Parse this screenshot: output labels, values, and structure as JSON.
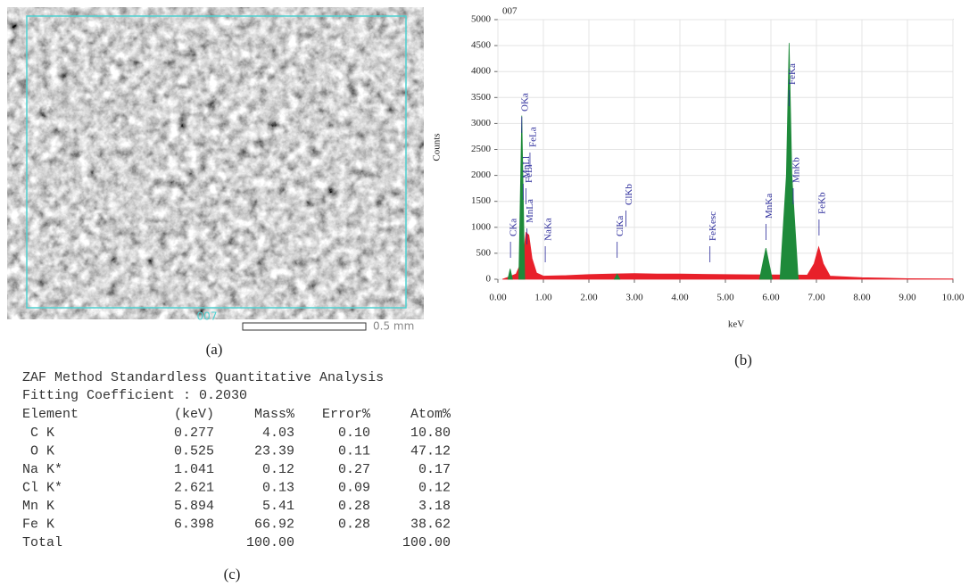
{
  "panels": {
    "a": "(a)",
    "b": "(b)",
    "c": "(c)"
  },
  "image": {
    "code": "007",
    "scale": "0.5 mm"
  },
  "chart_data": {
    "type": "area",
    "title": "007",
    "x_label": "keV",
    "y_label": "Counts",
    "xlim": [
      0,
      10
    ],
    "ylim": [
      0,
      5000
    ],
    "xticks": [
      {
        "value": 0,
        "label": "0.00"
      },
      {
        "value": 1,
        "label": "1.00"
      },
      {
        "value": 2,
        "label": "2.00"
      },
      {
        "value": 3,
        "label": "3.00"
      },
      {
        "value": 4,
        "label": "4.00"
      },
      {
        "value": 5,
        "label": "5.00"
      },
      {
        "value": 6,
        "label": "6.00"
      },
      {
        "value": 7,
        "label": "7.00"
      },
      {
        "value": 8,
        "label": "8.00"
      },
      {
        "value": 9,
        "label": "9.00"
      },
      {
        "value": 10,
        "label": "10.00"
      }
    ],
    "yticks": [
      0,
      500,
      1000,
      1500,
      2000,
      2500,
      3000,
      3500,
      4000,
      4500,
      5000
    ],
    "grid": true,
    "series": [
      {
        "color": "#e8202a",
        "x": [
          0.1,
          0.2,
          0.4,
          0.55,
          0.62,
          0.68,
          0.75,
          0.85,
          1.0,
          1.5,
          2.0,
          2.5,
          3.0,
          3.5,
          4.0,
          4.5,
          5.0,
          5.5,
          6.8,
          6.95,
          7.05,
          7.15,
          7.3,
          8.0,
          8.5,
          9.0,
          10.0
        ],
        "values": [
          0,
          30,
          100,
          400,
          900,
          850,
          400,
          120,
          60,
          70,
          90,
          100,
          110,
          100,
          100,
          95,
          90,
          85,
          80,
          300,
          620,
          300,
          60,
          30,
          20,
          10,
          5
        ]
      },
      {
        "color": "#1e8a3a",
        "x": [
          0.22,
          0.27,
          0.32,
          0.33,
          0.46,
          0.525,
          0.59,
          0.6,
          2.56,
          2.62,
          2.68,
          2.7,
          5.75,
          5.89,
          6.03,
          6.04,
          6.2,
          6.34,
          6.4,
          6.46,
          6.6
        ],
        "values": [
          0,
          200,
          0,
          null,
          0,
          3150,
          0,
          null,
          0,
          100,
          0,
          null,
          0,
          600,
          0,
          null,
          0,
          2000,
          4550,
          2000,
          0
        ]
      }
    ],
    "annotations": [
      {
        "text": "CKa",
        "x": 0.277
      },
      {
        "text": "OKa",
        "x": 0.525
      },
      {
        "text": "MnLl",
        "x": 0.556
      },
      {
        "text": "FeLl",
        "x": 0.615
      },
      {
        "text": "FeLa",
        "x": 0.705
      },
      {
        "text": "MnLa",
        "x": 0.637
      },
      {
        "text": "NaKa",
        "x": 1.041
      },
      {
        "text": "ClKa",
        "x": 2.621
      },
      {
        "text": "ClKb",
        "x": 2.815
      },
      {
        "text": "FeKesc",
        "x": 4.66
      },
      {
        "text": "MnKa",
        "x": 5.894
      },
      {
        "text": "FeKa",
        "x": 6.398
      },
      {
        "text": "MnKb",
        "x": 6.49
      },
      {
        "text": "FeKb",
        "x": 7.057
      }
    ]
  },
  "table": {
    "title": "ZAF Method Standardless Quantitative Analysis",
    "fitting": "Fitting Coefficient : 0.2030",
    "header": [
      "Element",
      "(keV)",
      "Mass%",
      "Error%",
      "Atom%"
    ],
    "rows": [
      [
        "C K",
        "0.277",
        "4.03",
        "0.10",
        "10.80"
      ],
      [
        "O K",
        "0.525",
        "23.39",
        "0.11",
        "47.12"
      ],
      [
        "Na K*",
        "1.041",
        "0.12",
        "0.27",
        "0.17"
      ],
      [
        "Cl K*",
        "2.621",
        "0.13",
        "0.09",
        "0.12"
      ],
      [
        "Mn K",
        "5.894",
        "5.41",
        "0.28",
        "3.18"
      ],
      [
        "Fe K",
        "6.398",
        "66.92",
        "0.28",
        "38.62"
      ],
      [
        "Total",
        "",
        "100.00",
        "",
        "100.00"
      ]
    ]
  }
}
